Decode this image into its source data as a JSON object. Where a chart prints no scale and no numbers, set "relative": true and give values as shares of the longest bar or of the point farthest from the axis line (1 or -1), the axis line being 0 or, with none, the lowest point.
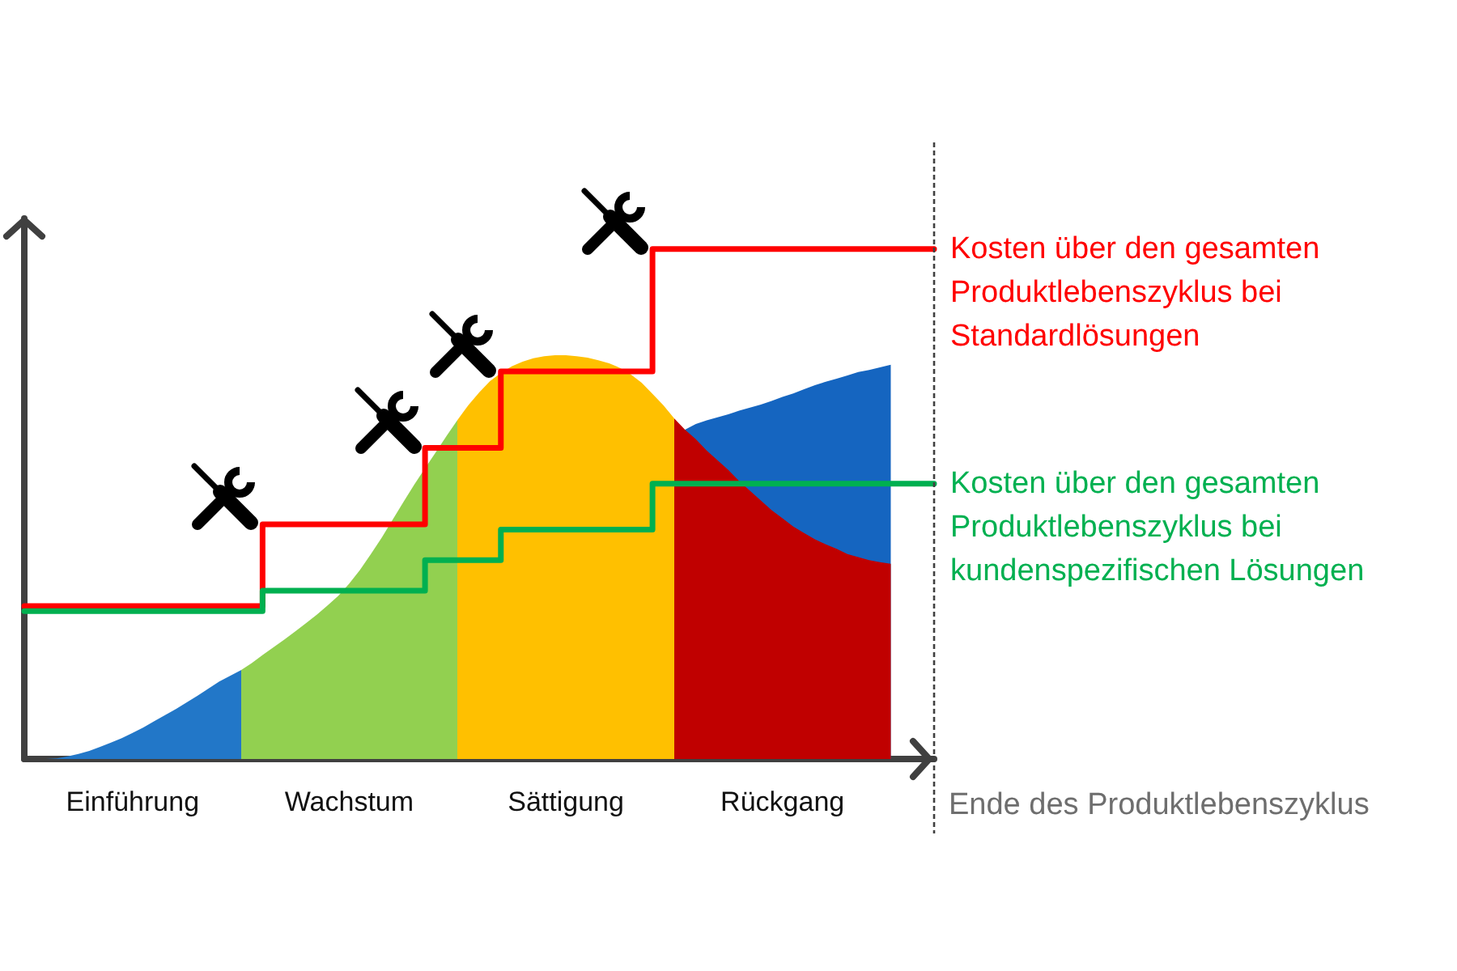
{
  "chart_data": {
    "type": "area",
    "relative": true,
    "categories": [
      null,
      null,
      null,
      null,
      null,
      null,
      null,
      null,
      null,
      null,
      "Einführung",
      null,
      null,
      null,
      null,
      null,
      null,
      null,
      null,
      null,
      null,
      null,
      null,
      null,
      null,
      null,
      null,
      null,
      null,
      null,
      "Wachstum",
      null,
      null,
      null,
      null,
      null,
      null,
      null,
      null,
      null,
      null,
      null,
      null,
      null,
      null,
      null,
      null,
      null,
      null,
      null,
      "Sättigung",
      null,
      null,
      null,
      null,
      null,
      null,
      null,
      null,
      null,
      null,
      null,
      null,
      null,
      null,
      null,
      null,
      null,
      null,
      null,
      "Rückgang",
      null,
      null,
      null,
      null,
      null,
      null,
      null,
      null,
      null,
      null,
      null,
      null,
      null,
      null
    ],
    "series": [
      {
        "color": "#1565c0",
        "values": [
          null,
          null,
          null,
          null,
          null,
          null,
          null,
          null,
          null,
          null,
          null,
          null,
          null,
          null,
          null,
          null,
          null,
          null,
          null,
          null,
          null,
          null,
          null,
          null,
          null,
          null,
          null,
          null,
          null,
          null,
          null,
          null,
          null,
          null,
          null,
          null,
          null,
          null,
          null,
          null,
          null,
          null,
          null,
          null,
          null,
          null,
          null,
          null,
          null,
          null,
          null,
          null,
          null,
          null,
          null,
          null,
          null,
          null,
          null,
          null,
          null,
          0.646,
          0.657,
          0.664,
          0.67,
          0.676,
          0.683,
          0.689,
          0.695,
          0.702,
          0.71,
          0.717,
          0.725,
          0.733,
          0.74,
          0.746,
          0.752,
          0.759,
          0.763,
          0.768,
          0.773,
          null,
          null,
          null,
          null
        ]
      },
      {
        "values": [
          0,
          0,
          0,
          0.001,
          0.005,
          0.01,
          0.016,
          0.024,
          0.032,
          0.041,
          0.051,
          0.062,
          0.074,
          0.086,
          0.098,
          0.111,
          0.124,
          0.138,
          0.152,
          0.163,
          0.174,
          0.188,
          0.204,
          0.219,
          0.234,
          0.25,
          0.266,
          0.283,
          0.301,
          0.32,
          0.344,
          0.371,
          0.402,
          0.434,
          0.469,
          0.504,
          0.538,
          0.57,
          0.602,
          0.634,
          0.665,
          0.694,
          0.719,
          0.741,
          0.757,
          0.77,
          0.779,
          0.786,
          0.79,
          0.792,
          0.792,
          0.79,
          0.787,
          0.782,
          0.776,
          0.767,
          0.754,
          0.738,
          0.716,
          0.694,
          0.668,
          0.646,
          0.627,
          0.605,
          0.586,
          0.567,
          0.545,
          0.526,
          0.507,
          0.488,
          0.472,
          0.456,
          0.443,
          0.431,
          0.421,
          0.412,
          0.402,
          0.396,
          0.39,
          0.386,
          0.383,
          null,
          null,
          null,
          null
        ],
        "colors": [
          "#2277c8",
          "#2277c8",
          "#2277c8",
          "#2277c8",
          "#2277c8",
          "#2277c8",
          "#2277c8",
          "#2277c8",
          "#2277c8",
          "#2277c8",
          "#2277c8",
          "#2277c8",
          "#2277c8",
          "#2277c8",
          "#2277c8",
          "#2277c8",
          "#2277c8",
          "#2277c8",
          "#2277c8",
          "#2277c8",
          "#92d050",
          "#92d050",
          "#92d050",
          "#92d050",
          "#92d050",
          "#92d050",
          "#92d050",
          "#92d050",
          "#92d050",
          "#92d050",
          "#92d050",
          "#92d050",
          "#92d050",
          "#92d050",
          "#92d050",
          "#92d050",
          "#92d050",
          "#92d050",
          "#92d050",
          "#92d050",
          "#ffc000",
          "#ffc000",
          "#ffc000",
          "#ffc000",
          "#ffc000",
          "#ffc000",
          "#ffc000",
          "#ffc000",
          "#ffc000",
          "#ffc000",
          "#ffc000",
          "#ffc000",
          "#ffc000",
          "#ffc000",
          "#ffc000",
          "#ffc000",
          "#ffc000",
          "#ffc000",
          "#ffc000",
          "#ffc000",
          "#c00000",
          "#c00000",
          "#c00000",
          "#c00000",
          "#c00000",
          "#c00000",
          "#c00000",
          "#c00000",
          "#c00000",
          "#c00000",
          "#c00000",
          "#c00000",
          "#c00000",
          "#c00000",
          "#c00000",
          "#c00000",
          "#c00000",
          "#c00000",
          "#c00000",
          "#c00000",
          "#c00000",
          null,
          null,
          null,
          null
        ]
      },
      {
        "type": "step",
        "name": "Kosten über den gesamten Produktlebenszyklus bei Standardlösungen",
        "color": "#ff0000",
        "values": [
          0.3,
          0.3,
          0.3,
          0.3,
          0.3,
          0.3,
          0.3,
          0.3,
          0.3,
          0.3,
          0.3,
          0.3,
          0.3,
          0.3,
          0.3,
          0.3,
          0.3,
          0.3,
          0.3,
          0.3,
          0.3,
          0.3,
          0.46,
          0.46,
          0.46,
          0.46,
          0.46,
          0.46,
          0.46,
          0.46,
          0.46,
          0.46,
          0.46,
          0.46,
          0.46,
          0.46,
          0.46,
          0.61,
          0.61,
          0.61,
          0.61,
          0.61,
          0.61,
          0.61,
          0.76,
          0.76,
          0.76,
          0.76,
          0.76,
          0.76,
          0.76,
          0.76,
          0.76,
          0.76,
          0.76,
          0.76,
          0.76,
          0.76,
          1,
          1,
          1,
          1,
          1,
          1,
          1,
          1,
          1,
          1,
          1,
          1,
          1,
          1,
          1,
          1,
          1,
          1,
          1,
          1,
          1,
          1,
          1,
          1,
          1,
          1,
          1
        ]
      },
      {
        "type": "step",
        "name": "Kosten über den gesamten Produktlebenszyklus bei kundenspezifischen Lösungen",
        "color": "#00b050",
        "values": [
          0.29,
          0.29,
          0.29,
          0.29,
          0.29,
          0.29,
          0.29,
          0.29,
          0.29,
          0.29,
          0.29,
          0.29,
          0.29,
          0.29,
          0.29,
          0.29,
          0.29,
          0.29,
          0.29,
          0.29,
          0.29,
          0.29,
          0.33,
          0.33,
          0.33,
          0.33,
          0.33,
          0.33,
          0.33,
          0.33,
          0.33,
          0.33,
          0.33,
          0.33,
          0.33,
          0.33,
          0.33,
          0.39,
          0.39,
          0.39,
          0.39,
          0.39,
          0.39,
          0.39,
          0.45,
          0.45,
          0.45,
          0.45,
          0.45,
          0.45,
          0.45,
          0.45,
          0.45,
          0.45,
          0.45,
          0.45,
          0.45,
          0.45,
          0.54,
          0.54,
          0.54,
          0.54,
          0.54,
          0.54,
          0.54,
          0.54,
          0.54,
          0.54,
          0.54,
          0.54,
          0.54,
          0.54,
          0.54,
          0.54,
          0.54,
          0.54,
          0.54,
          0.54,
          0.54,
          0.54,
          0.54,
          0.54,
          0.54,
          0.54,
          0.54
        ]
      }
    ],
    "annotations": [
      "Ende des Produktlebenszyklus"
    ]
  }
}
